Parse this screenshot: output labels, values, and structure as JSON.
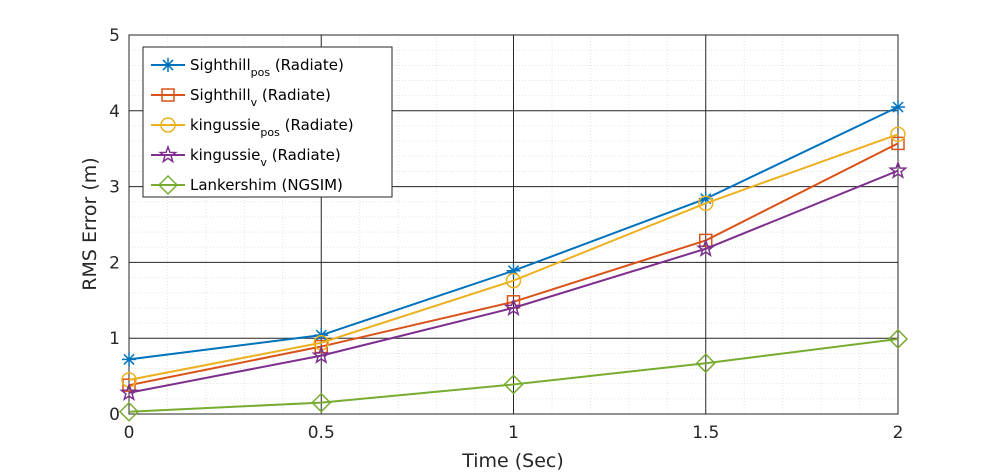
{
  "chart_data": {
    "type": "line",
    "xlabel": "Time (Sec)",
    "ylabel": "RMS Error (m)",
    "xlim": [
      0,
      2
    ],
    "ylim": [
      0,
      5
    ],
    "x_ticks": [
      0,
      0.5,
      1,
      1.5,
      2
    ],
    "x_tick_labels": [
      "0",
      "0.5",
      "1",
      "1.5",
      "2"
    ],
    "y_ticks": [
      0,
      1,
      2,
      3,
      4,
      5
    ],
    "y_tick_labels": [
      "0",
      "1",
      "2",
      "3",
      "4",
      "5"
    ],
    "grid": true,
    "minor_grid": true,
    "legend_position": "top-left",
    "x": [
      0,
      0.5,
      1,
      1.5,
      2
    ],
    "series": [
      {
        "name": "Sighthill",
        "name_sub": "pos",
        "name_suffix": " (Radiate)",
        "marker": "asterisk",
        "color": "#0072BD",
        "values": [
          0.72,
          1.04,
          1.89,
          2.84,
          4.05
        ]
      },
      {
        "name": "Sighthill",
        "name_sub": "v",
        "name_suffix": " (Radiate)",
        "marker": "square",
        "color": "#D95319",
        "values": [
          0.38,
          0.89,
          1.48,
          2.29,
          3.57
        ]
      },
      {
        "name": "kingussie",
        "name_sub": "pos",
        "name_suffix": " (Radiate)",
        "marker": "circle",
        "color": "#EDB120",
        "values": [
          0.45,
          0.94,
          1.76,
          2.78,
          3.69
        ]
      },
      {
        "name": "kingussie",
        "name_sub": "v",
        "name_suffix": " (Radiate)",
        "marker": "star",
        "color": "#7E2F8E",
        "values": [
          0.28,
          0.77,
          1.4,
          2.18,
          3.21
        ]
      },
      {
        "name": "Lankershim (NGSIM)",
        "name_sub": "",
        "name_suffix": "",
        "marker": "diamond",
        "color": "#77AC30",
        "values": [
          0.03,
          0.15,
          0.39,
          0.67,
          0.99
        ]
      }
    ]
  }
}
